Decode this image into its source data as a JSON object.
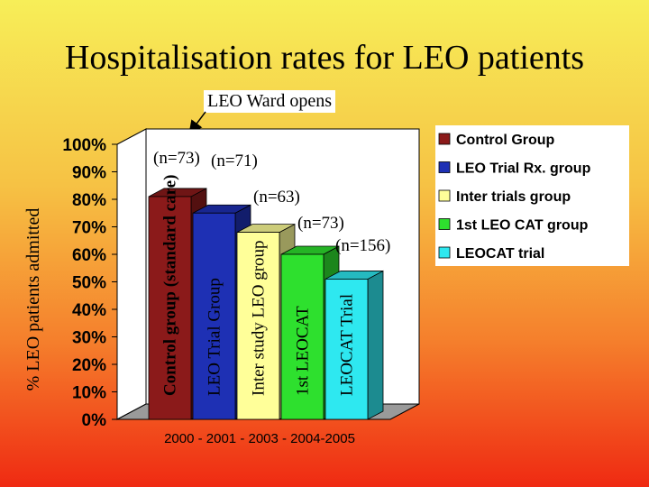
{
  "title": "Hospitalisation rates for LEO patients",
  "callout": "LEO Ward opens",
  "chart_data": {
    "type": "bar",
    "ylabel": "% LEO patients admitted",
    "xlabel": "2000 - 2001 - 2003 - 2004-2005",
    "ylim": [
      0,
      100
    ],
    "yticks": [
      "0%",
      "10%",
      "20%",
      "30%",
      "40%",
      "50%",
      "60%",
      "70%",
      "80%",
      "90%",
      "100%"
    ],
    "categories": [
      "Control group (standard care)",
      "LEO Trial Group",
      "Inter study LEO group",
      "1st LEOCAT",
      "LEOCAT Trial"
    ],
    "values": [
      81,
      75,
      68,
      60,
      51
    ],
    "n_labels": [
      "(n=73)",
      "(n=71)",
      "(n=63)",
      "(n=73)",
      "(n=156)"
    ],
    "colors": [
      "#8b1a1a",
      "#1e30b4",
      "#ffff99",
      "#2ee02e",
      "#2ee8f0"
    ],
    "legend": [
      {
        "label": "Control Group",
        "color": "#8b1a1a"
      },
      {
        "label": "LEO Trial Rx. group",
        "color": "#1e30b4"
      },
      {
        "label": "Inter trials group",
        "color": "#ffff99"
      },
      {
        "label": "1st LEO CAT group",
        "color": "#2ee02e"
      },
      {
        "label": "LEOCAT trial",
        "color": "#2ee8f0"
      }
    ]
  }
}
